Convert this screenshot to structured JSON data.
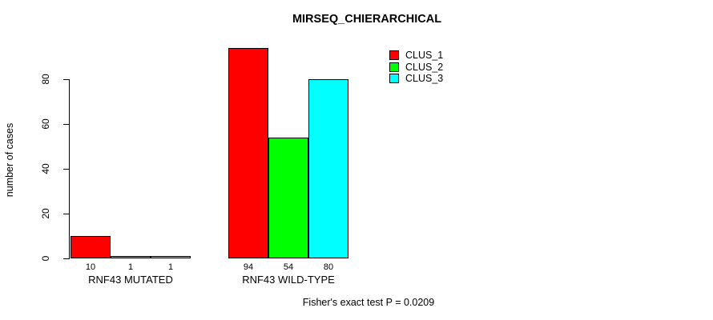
{
  "chart_data": {
    "type": "bar",
    "title": "MIRSEQ_CHIERARCHICAL",
    "ylabel": "number of cases",
    "xlabel": "",
    "categories": [
      "RNF43 MUTATED",
      "RNF43 WILD-TYPE"
    ],
    "series": [
      {
        "name": "CLUS_1",
        "color": "#ff0000",
        "values": [
          10,
          94
        ]
      },
      {
        "name": "CLUS_2",
        "color": "#00ff00",
        "values": [
          1,
          54
        ]
      },
      {
        "name": "CLUS_3",
        "color": "#00ffff",
        "values": [
          1,
          80
        ]
      }
    ],
    "value_labels": [
      [
        "10",
        "1",
        "1"
      ],
      [
        "94",
        "54",
        "80"
      ]
    ],
    "yticks": [
      "0",
      "20",
      "40",
      "60",
      "80"
    ],
    "ylim": [
      0,
      95
    ],
    "grid": false,
    "legend_position": "top-right",
    "bar_border_color": "#000000",
    "background_color": "#ffffff",
    "footnote": "Fisher's exact test P = 0.0209"
  }
}
